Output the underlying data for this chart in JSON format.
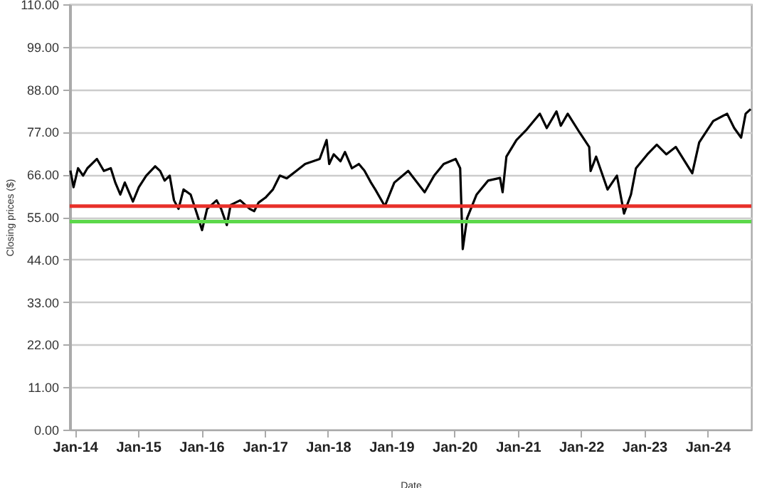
{
  "chart_data": {
    "type": "line",
    "xlabel": "Date",
    "ylabel": "Closing prices ($)",
    "x": [
      "2013-12-06",
      "2013-12-24",
      "2014-01-19",
      "2014-02-17",
      "2014-03-14",
      "2014-05-08",
      "2014-06-17",
      "2014-07-27",
      "2014-08-22",
      "2014-09-20",
      "2014-10-16",
      "2014-12-02",
      "2015-01-05",
      "2015-02-17",
      "2015-04-09",
      "2015-05-08",
      "2015-06-03",
      "2015-07-02",
      "2015-07-27",
      "2015-08-22",
      "2015-09-20",
      "2015-10-31",
      "2015-12-10",
      "2016-01-05",
      "2016-02-03",
      "2016-03-29",
      "2016-04-24",
      "2016-05-27",
      "2016-06-18",
      "2016-08-12",
      "2016-10-06",
      "2016-11-01",
      "2016-11-26",
      "2017-01-05",
      "2017-02-17",
      "2017-03-29",
      "2017-05-08",
      "2017-07-02",
      "2017-08-22",
      "2017-11-14",
      "2017-12-24",
      "2018-01-08",
      "2018-02-03",
      "2018-03-14",
      "2018-04-09",
      "2018-05-19",
      "2018-06-28",
      "2018-07-30",
      "2018-09-06",
      "2018-10-01",
      "2018-11-25",
      "2019-01-19",
      "2019-04-09",
      "2019-07-13",
      "2019-09-06",
      "2019-10-31",
      "2020-01-08",
      "2020-02-03",
      "2020-02-18",
      "2020-03-14",
      "2020-05-08",
      "2020-07-13",
      "2020-09-20",
      "2020-10-05",
      "2020-10-27",
      "2020-12-24",
      "2021-02-17",
      "2021-05-08",
      "2021-06-17",
      "2021-08-12",
      "2021-09-06",
      "2021-10-16",
      "2021-12-24",
      "2022-02-17",
      "2022-02-25",
      "2022-03-29",
      "2022-06-03",
      "2022-07-27",
      "2022-09-06",
      "2022-10-16",
      "2022-11-14",
      "2023-01-19",
      "2023-03-14",
      "2023-05-08",
      "2023-07-02",
      "2023-10-05",
      "2023-11-14",
      "2024-02-03",
      "2024-04-23",
      "2024-06-03",
      "2024-07-13",
      "2024-08-08",
      "2024-09-06"
    ],
    "series": [
      {
        "color": "#000000",
        "values": [
          67.0,
          62.7,
          67.6,
          65.7,
          67.6,
          70.0,
          66.9,
          67.6,
          63.9,
          60.8,
          63.9,
          59.0,
          62.7,
          65.7,
          68.1,
          66.9,
          64.4,
          65.7,
          59.3,
          57.1,
          62.1,
          60.8,
          55.3,
          51.6,
          57.1,
          59.3,
          57.1,
          52.9,
          58.1,
          59.3,
          57.1,
          56.5,
          58.7,
          60.0,
          62.1,
          65.7,
          65.0,
          66.9,
          68.7,
          70.0,
          74.9,
          68.7,
          71.2,
          69.4,
          71.8,
          67.6,
          68.7,
          67.0,
          63.9,
          62.1,
          57.8,
          63.9,
          66.9,
          61.4,
          65.7,
          68.7,
          70.0,
          67.6,
          46.7,
          54.7,
          60.8,
          64.4,
          65.1,
          61.4,
          70.6,
          74.9,
          77.4,
          81.7,
          78.0,
          82.3,
          78.6,
          81.7,
          76.8,
          73.1,
          66.9,
          70.6,
          62.1,
          65.7,
          55.9,
          60.8,
          67.6,
          71.2,
          73.7,
          71.2,
          73.1,
          66.3,
          74.3,
          79.8,
          81.7,
          78.0,
          75.5,
          81.7,
          82.9
        ]
      }
    ],
    "xlim": [
      "2013-12-02",
      "2024-09-10"
    ],
    "xticks": [
      {
        "value": "2014-01-01",
        "label": "Jan-14"
      },
      {
        "value": "2015-01-01",
        "label": "Jan-15"
      },
      {
        "value": "2016-01-01",
        "label": "Jan-16"
      },
      {
        "value": "2017-01-01",
        "label": "Jan-17"
      },
      {
        "value": "2018-01-01",
        "label": "Jan-18"
      },
      {
        "value": "2019-01-01",
        "label": "Jan-19"
      },
      {
        "value": "2020-01-01",
        "label": "Jan-20"
      },
      {
        "value": "2021-01-01",
        "label": "Jan-21"
      },
      {
        "value": "2022-01-01",
        "label": "Jan-22"
      },
      {
        "value": "2023-01-01",
        "label": "Jan-23"
      },
      {
        "value": "2024-01-01",
        "label": "Jan-24"
      }
    ],
    "ylim": [
      0,
      110
    ],
    "yticks": [
      {
        "value": 0,
        "label": "0.00"
      },
      {
        "value": 11,
        "label": "11.00"
      },
      {
        "value": 22,
        "label": "22.00"
      },
      {
        "value": 33,
        "label": "33.00"
      },
      {
        "value": 44,
        "label": "44.00"
      },
      {
        "value": 55,
        "label": "55.00"
      },
      {
        "value": 66,
        "label": "66.00"
      },
      {
        "value": 77,
        "label": "77.00"
      },
      {
        "value": 88,
        "label": "88.00"
      },
      {
        "value": 99,
        "label": "99.00"
      },
      {
        "value": 110,
        "label": "110.00"
      }
    ],
    "ref_lines": [
      {
        "axis": "y",
        "value": 57.8,
        "color": "#e8302a"
      },
      {
        "axis": "y",
        "value": 53.8,
        "color": "#5cd84a"
      }
    ],
    "grid": "y"
  }
}
